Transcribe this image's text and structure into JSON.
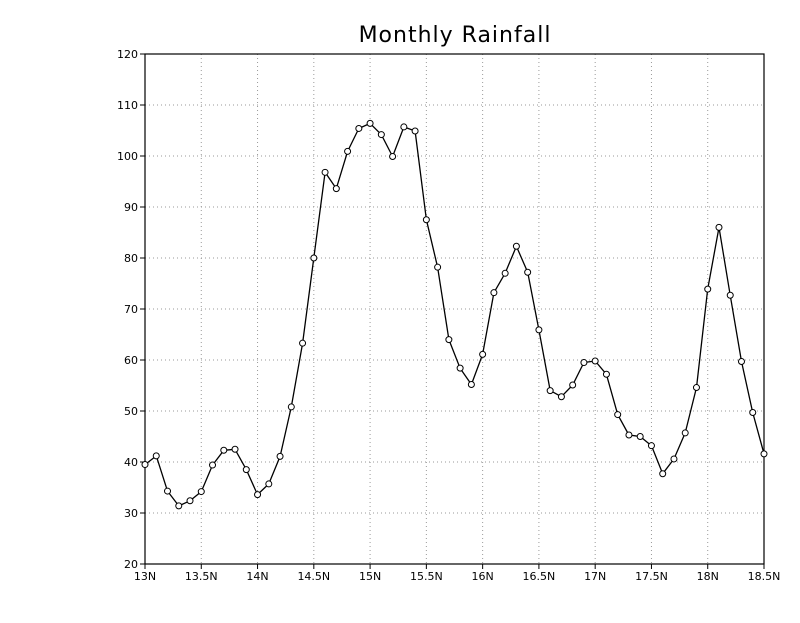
{
  "chart_data": {
    "type": "line",
    "title": "Monthly Rainfall",
    "xlabel": "",
    "ylabel": "",
    "xlim": [
      13,
      18.5
    ],
    "ylim": [
      20,
      120
    ],
    "grid": true,
    "x_ticks": [
      {
        "value": 13,
        "label": "13N"
      },
      {
        "value": 13.5,
        "label": "13.5N"
      },
      {
        "value": 14,
        "label": "14N"
      },
      {
        "value": 14.5,
        "label": "14.5N"
      },
      {
        "value": 15,
        "label": "15N"
      },
      {
        "value": 15.5,
        "label": "15.5N"
      },
      {
        "value": 16,
        "label": "16N"
      },
      {
        "value": 16.5,
        "label": "16.5N"
      },
      {
        "value": 17,
        "label": "17N"
      },
      {
        "value": 17.5,
        "label": "17.5N"
      },
      {
        "value": 18,
        "label": "18N"
      },
      {
        "value": 18.5,
        "label": "18.5N"
      }
    ],
    "y_ticks": [
      20,
      30,
      40,
      50,
      60,
      70,
      80,
      90,
      100,
      110,
      120
    ],
    "series": [
      {
        "color": "#000000",
        "marker": "open-circle",
        "x": [
          13.0,
          13.1,
          13.2,
          13.3,
          13.4,
          13.5,
          13.6,
          13.7,
          13.8,
          13.9,
          14.0,
          14.1,
          14.2,
          14.3,
          14.4,
          14.5,
          14.6,
          14.7,
          14.8,
          14.9,
          15.0,
          15.1,
          15.2,
          15.3,
          15.4,
          15.5,
          15.6,
          15.7,
          15.8,
          15.9,
          16.0,
          16.1,
          16.2,
          16.3,
          16.4,
          16.5,
          16.6,
          16.7,
          16.8,
          16.9,
          17.0,
          17.1,
          17.2,
          17.3,
          17.4,
          17.5,
          17.6,
          17.7,
          17.8,
          17.9,
          18.0,
          18.1,
          18.2,
          18.3,
          18.4,
          18.5
        ],
        "y": [
          39.5,
          41.2,
          34.3,
          31.4,
          32.4,
          34.2,
          39.4,
          42.3,
          42.5,
          38.5,
          33.6,
          35.7,
          41.1,
          50.8,
          63.3,
          80.0,
          96.8,
          93.6,
          100.9,
          105.4,
          106.4,
          104.2,
          99.9,
          105.7,
          104.9,
          87.5,
          78.2,
          64.0,
          58.4,
          55.2,
          61.1,
          73.2,
          77.0,
          82.3,
          77.2,
          65.9,
          54.0,
          52.8,
          55.1,
          59.5,
          59.8,
          57.2,
          49.3,
          45.3,
          45.0,
          43.2,
          37.7,
          40.6,
          45.7,
          54.6,
          73.9,
          86.0,
          72.7,
          59.7,
          49.7,
          41.6
        ]
      }
    ]
  }
}
